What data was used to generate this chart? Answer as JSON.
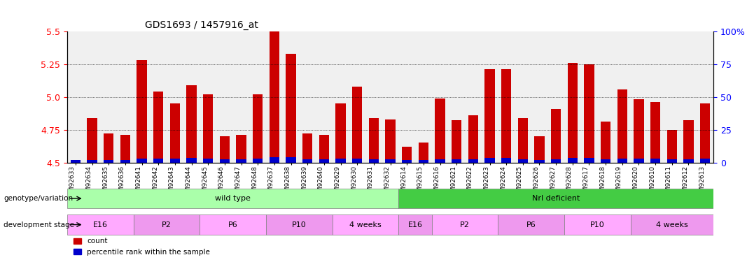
{
  "title": "GDS1693 / 1457916_at",
  "samples": [
    "GSM92633",
    "GSM92634",
    "GSM92635",
    "GSM92636",
    "GSM92641",
    "GSM92642",
    "GSM92643",
    "GSM92644",
    "GSM92645",
    "GSM92646",
    "GSM92647",
    "GSM92648",
    "GSM92637",
    "GSM92638",
    "GSM92639",
    "GSM92640",
    "GSM92629",
    "GSM92630",
    "GSM92631",
    "GSM92632",
    "GSM92614",
    "GSM92615",
    "GSM92616",
    "GSM92621",
    "GSM92622",
    "GSM92623",
    "GSM92624",
    "GSM92625",
    "GSM92626",
    "GSM92627",
    "GSM92628",
    "GSM92617",
    "GSM92618",
    "GSM92619",
    "GSM92620",
    "GSM92610",
    "GSM92611",
    "GSM92612",
    "GSM92613"
  ],
  "red_values": [
    4.5,
    4.84,
    4.72,
    4.71,
    5.28,
    5.04,
    4.95,
    5.09,
    5.02,
    4.7,
    4.71,
    5.02,
    5.5,
    5.33,
    4.72,
    4.71,
    4.95,
    5.08,
    4.84,
    4.83,
    4.62,
    4.65,
    4.99,
    4.82,
    4.86,
    5.21,
    5.21,
    4.84,
    4.7,
    4.91,
    5.26,
    5.25,
    4.81,
    5.06,
    4.98,
    4.96,
    4.75,
    4.82,
    4.95
  ],
  "blue_values": [
    0.04,
    0.04,
    0.04,
    0.04,
    0.06,
    0.06,
    0.06,
    0.07,
    0.06,
    0.05,
    0.05,
    0.06,
    0.08,
    0.08,
    0.05,
    0.05,
    0.06,
    0.06,
    0.05,
    0.05,
    0.04,
    0.04,
    0.05,
    0.05,
    0.05,
    0.07,
    0.07,
    0.05,
    0.04,
    0.05,
    0.07,
    0.07,
    0.05,
    0.06,
    0.06,
    0.06,
    0.05,
    0.05,
    0.06
  ],
  "base": 4.5,
  "ylim": [
    4.5,
    5.5
  ],
  "yticks": [
    4.5,
    4.75,
    5.0,
    5.25,
    5.5
  ],
  "right_yticks": [
    0,
    25,
    50,
    75,
    100
  ],
  "right_ylim": [
    0,
    100
  ],
  "bar_color_red": "#cc0000",
  "bar_color_blue": "#0000cc",
  "bg_color": "#f0f0f0",
  "genotype_groups": [
    {
      "label": "wild type",
      "start": 0,
      "end": 19,
      "color": "#aaffaa"
    },
    {
      "label": "Nrl deficient",
      "start": 20,
      "end": 38,
      "color": "#44cc44"
    }
  ],
  "stage_groups": [
    {
      "label": "E16",
      "start": 0,
      "end": 3,
      "color": "#ffaaff"
    },
    {
      "label": "P2",
      "start": 4,
      "end": 7,
      "color": "#ffaaff"
    },
    {
      "label": "P6",
      "start": 8,
      "end": 11,
      "color": "#ffaaff"
    },
    {
      "label": "P10",
      "start": 12,
      "end": 15,
      "color": "#ffaaff"
    },
    {
      "label": "4 weeks",
      "start": 16,
      "end": 19,
      "color": "#ffaaff"
    },
    {
      "label": "E16",
      "start": 20,
      "end": 21,
      "color": "#ffaaff"
    },
    {
      "label": "P2",
      "start": 22,
      "end": 25,
      "color": "#ffaaff"
    },
    {
      "label": "P6",
      "start": 26,
      "end": 29,
      "color": "#ffaaff"
    },
    {
      "label": "P10",
      "start": 30,
      "end": 33,
      "color": "#ffaaff"
    },
    {
      "label": "4 weeks",
      "start": 34,
      "end": 38,
      "color": "#ffaaff"
    }
  ],
  "legend_items": [
    {
      "label": "count",
      "color": "#cc0000"
    },
    {
      "label": "percentile rank within the sample",
      "color": "#0000cc"
    }
  ]
}
